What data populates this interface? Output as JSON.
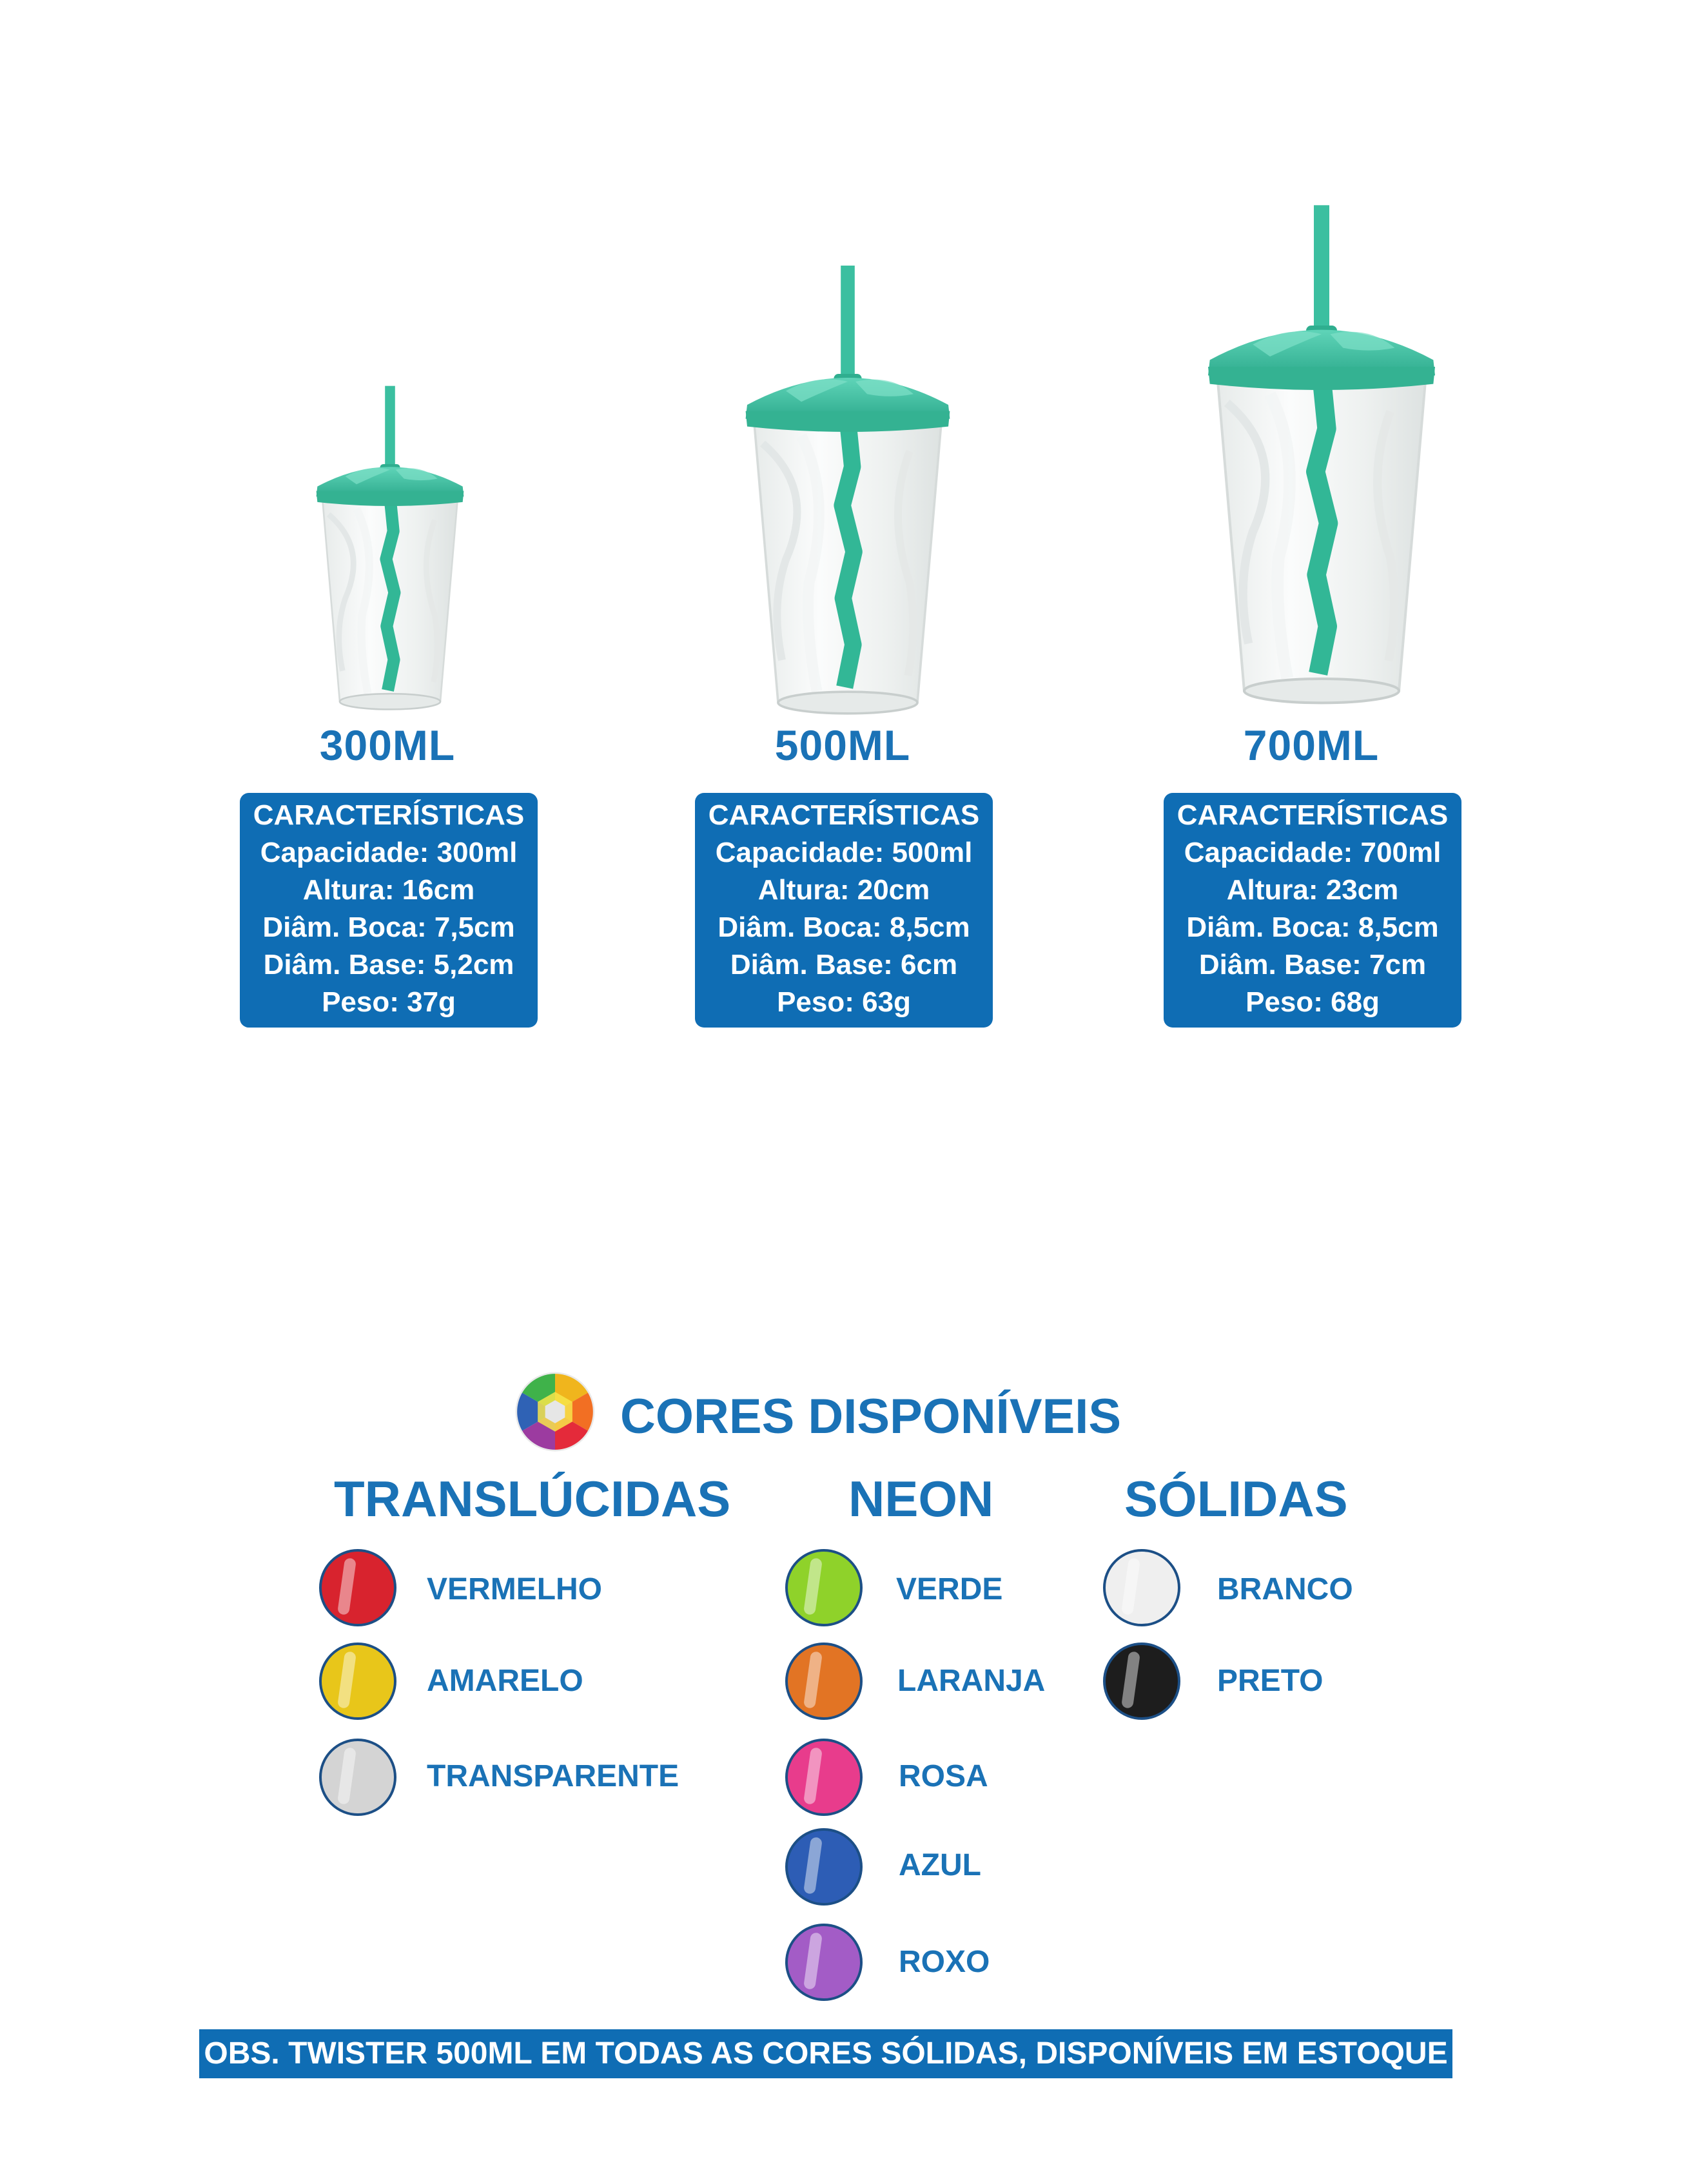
{
  "products": [
    {
      "size_label": "300ML",
      "specs": {
        "heading": "CARACTERÍSTICAS",
        "capacity": "Capacidade: 300ml",
        "height": "Altura: 16cm",
        "mouth_diameter": "Diâm. Boca: 7,5cm",
        "base_diameter": "Diâm. Base: 5,2cm",
        "weight": "Peso: 37g"
      }
    },
    {
      "size_label": "500ML",
      "specs": {
        "heading": "CARACTERÍSTICAS",
        "capacity": "Capacidade: 500ml",
        "height": "Altura: 20cm",
        "mouth_diameter": "Diâm. Boca: 8,5cm",
        "base_diameter": "Diâm. Base: 6cm",
        "weight": "Peso: 63g"
      }
    },
    {
      "size_label": "700ML",
      "specs": {
        "heading": "CARACTERÍSTICAS",
        "capacity": "Capacidade: 700ml",
        "height": "Altura: 23cm",
        "mouth_diameter": "Diâm. Boca: 8,5cm",
        "base_diameter": "Diâm. Base: 7cm",
        "weight": "Peso: 68g"
      }
    }
  ],
  "colors_section": {
    "title": "CORES DISPONÍVEIS",
    "icon": "color-wheel-icon",
    "groups": [
      {
        "title": "TRANSLÚCIDAS",
        "colors": [
          {
            "name": "VERMELHO",
            "hex": "#d8232e"
          },
          {
            "name": "AMARELO",
            "hex": "#e8c61a"
          },
          {
            "name": "TRANSPARENTE",
            "hex": "#d4d4d4"
          }
        ]
      },
      {
        "title": "NEON",
        "colors": [
          {
            "name": "VERDE",
            "hex": "#8fd22a"
          },
          {
            "name": "LARANJA",
            "hex": "#e27424"
          },
          {
            "name": "ROSA",
            "hex": "#e83c8c"
          },
          {
            "name": "AZUL",
            "hex": "#2d5db5"
          },
          {
            "name": "ROXO",
            "hex": "#a35cc6"
          }
        ]
      },
      {
        "title": "SÓLIDAS",
        "colors": [
          {
            "name": "BRANCO",
            "hex": "#efefef"
          },
          {
            "name": "PRETO",
            "hex": "#1d1d1d"
          }
        ]
      }
    ]
  },
  "note": "OBS. TWISTER 500ML EM TODAS AS CORES SÓLIDAS, DISPONÍVEIS EM ESTOQUE",
  "colors": {
    "brand_blue": "#0f6db4",
    "heading_blue": "#1a72b6",
    "lid_teal": "#3bbfa0"
  }
}
